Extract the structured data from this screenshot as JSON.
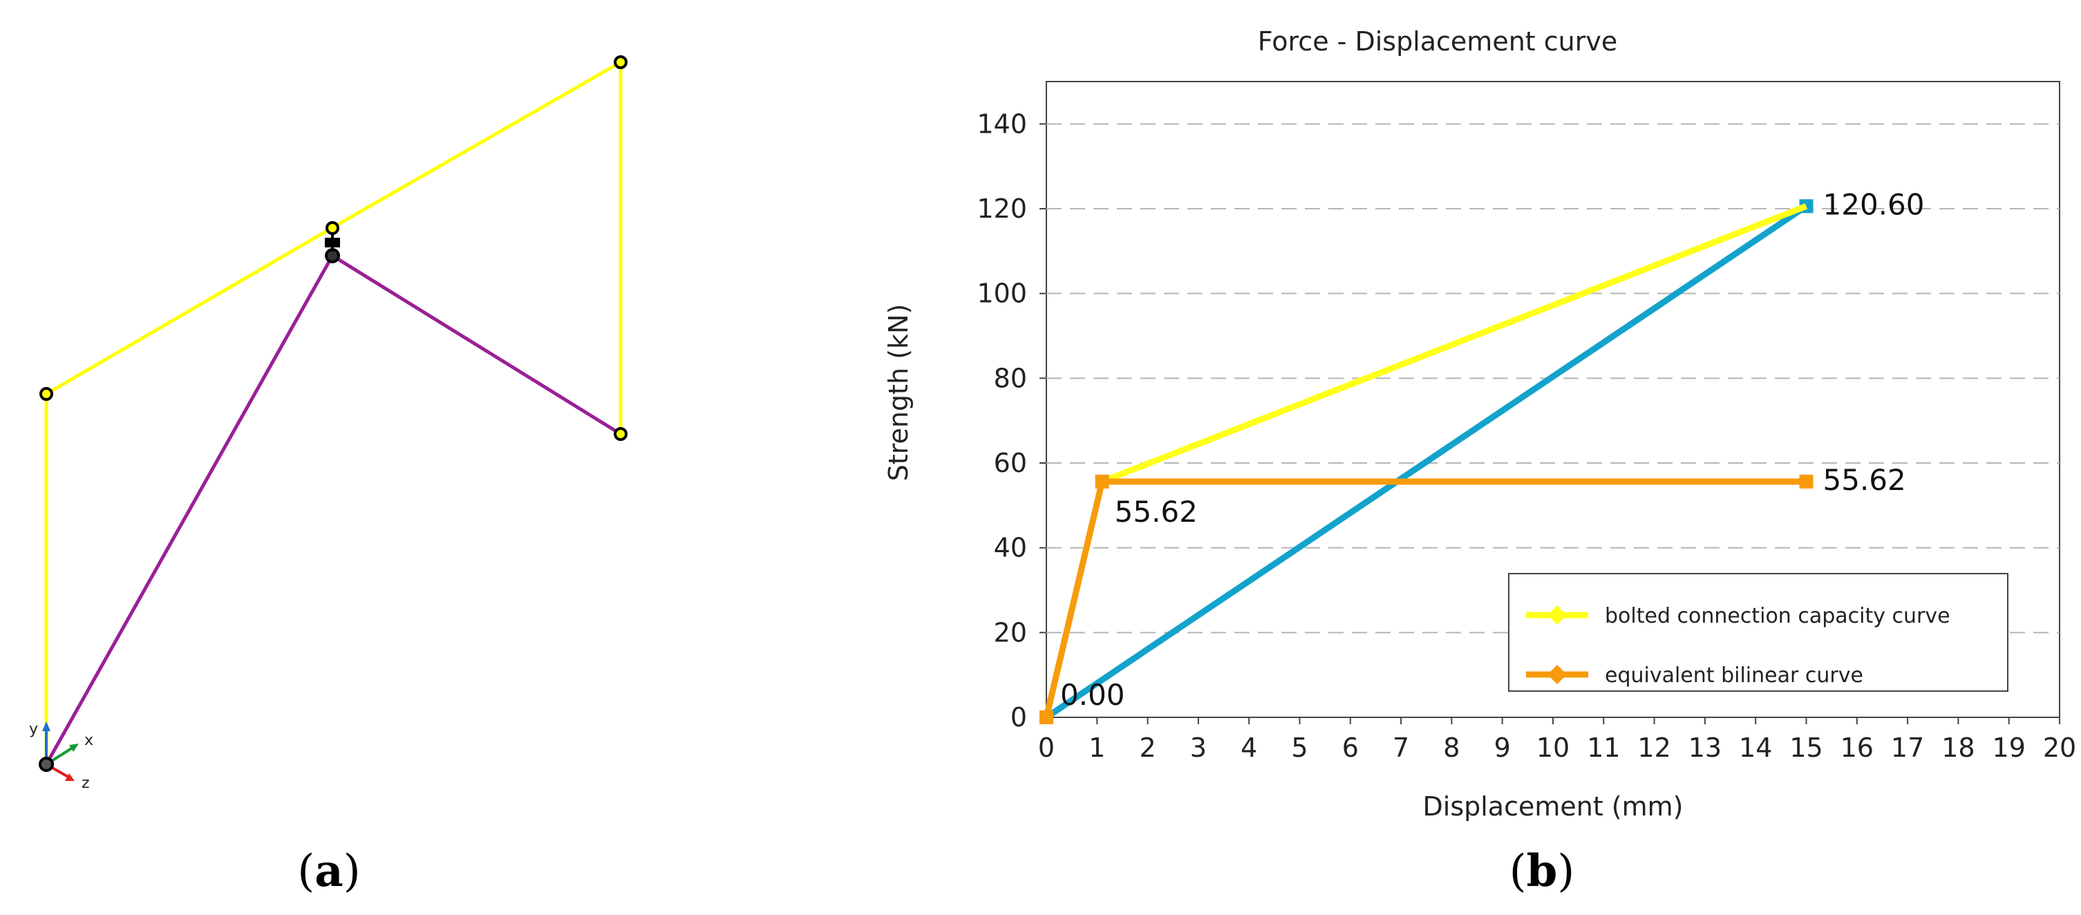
{
  "panel_a": {
    "label_letter": "a",
    "axis_labels": {
      "y": "y",
      "x": "x",
      "z": "z"
    },
    "colors": {
      "upper_chord": "#ffff00",
      "diagonal": "#9b1f96",
      "node": "#000000",
      "y_axis": "#1f6fd1",
      "x_axis": "#1a9a3a",
      "z_axis": "#e02020"
    }
  },
  "panel_b": {
    "label_letter": "b"
  },
  "chart_data": {
    "type": "line",
    "title": "Force - Displacement curve",
    "xlabel": "Displacement (mm)",
    "ylabel": "Strength (kN)",
    "xlim": [
      0,
      20
    ],
    "ylim": [
      0,
      150
    ],
    "x_ticks": [
      0,
      1,
      2,
      3,
      4,
      5,
      6,
      7,
      8,
      9,
      10,
      11,
      12,
      13,
      14,
      15,
      16,
      17,
      18,
      19,
      20
    ],
    "y_ticks": [
      0,
      20,
      40,
      60,
      80,
      100,
      120,
      140
    ],
    "grid": "horizontal-dashed",
    "legend_position": "bottom-right",
    "series": [
      {
        "name": "bolted connection capacity curve",
        "color": "#ffff1a",
        "marker": "diamond",
        "x": [
          0,
          1.1,
          15
        ],
        "y": [
          0,
          55.62,
          120.6
        ],
        "in_legend": true
      },
      {
        "name": "equivalent bilinear curve",
        "color": "#f79b0c",
        "marker": "square",
        "x": [
          0,
          1.1,
          15
        ],
        "y": [
          0,
          55.62,
          55.62
        ],
        "in_legend": true
      },
      {
        "color": "#12a3cc",
        "marker": "square-end",
        "x": [
          0,
          15
        ],
        "y": [
          0,
          120.6
        ],
        "in_legend": false
      }
    ],
    "annotations": [
      {
        "text": "120.60",
        "x": 15,
        "y": 120.6
      },
      {
        "text": "55.62",
        "x": 15,
        "y": 55.62
      },
      {
        "text": "55.62",
        "x": 1.1,
        "y": 55.62
      },
      {
        "text": "0.00",
        "x": 0,
        "y": 0
      }
    ]
  }
}
